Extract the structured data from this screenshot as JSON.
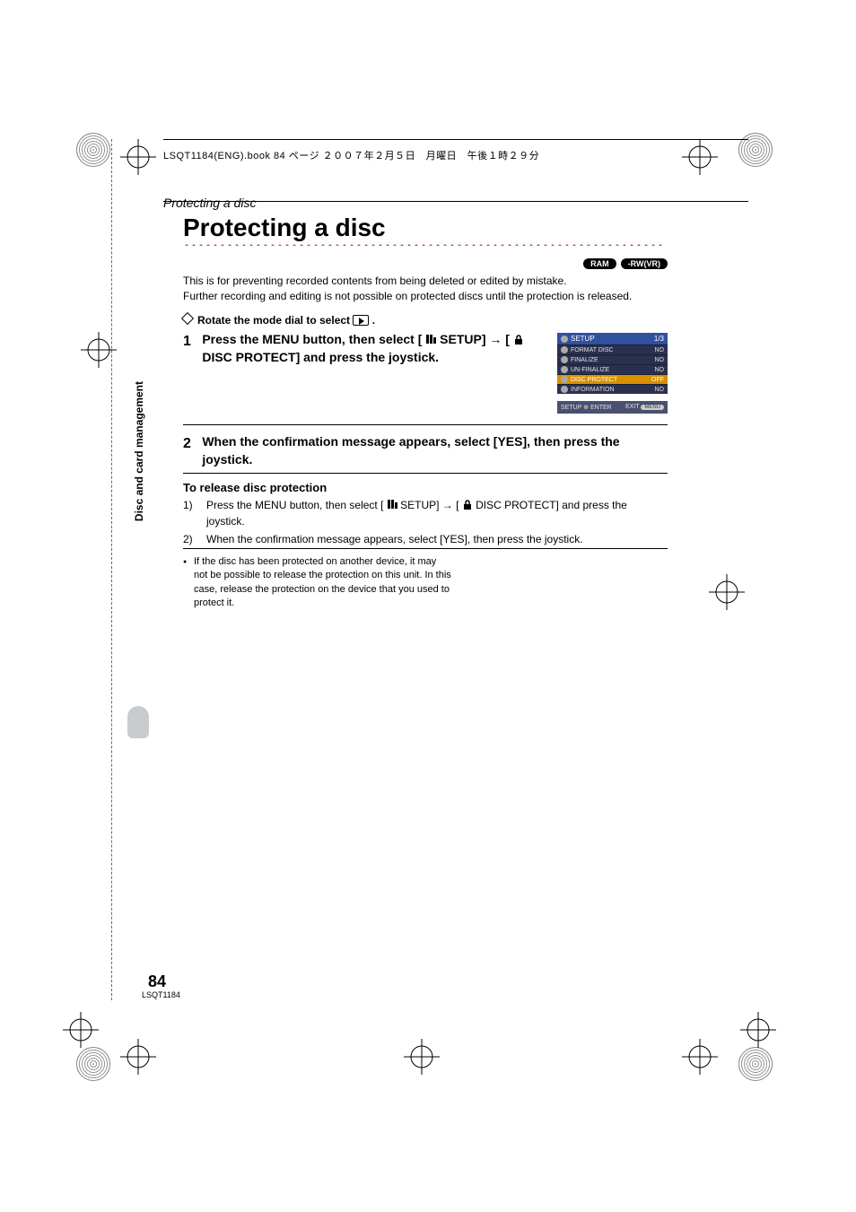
{
  "header": "LSQT1184(ENG).book  84 ページ  ２００７年２月５日　月曜日　午後１時２９分",
  "breadcrumb": "Protecting a disc",
  "title": "Protecting a disc",
  "badges": [
    "RAM",
    "-RW(VR)"
  ],
  "intro1": "This is for preventing recorded contents from being deleted or edited by mistake.",
  "intro2": "Further recording and editing is not possible on protected discs until the protection is released.",
  "rotate": "Rotate the mode dial to select ",
  "step1": {
    "num": "1",
    "t1": "Press the MENU button, then select [ ",
    "t2": " SETUP] ",
    "t3": "[ ",
    "t4": " DISC PROTECT] and press the joystick."
  },
  "step2": {
    "num": "2",
    "text": "When the confirmation message appears, select [YES], then press the joystick."
  },
  "release": {
    "heading": "To release disc protection",
    "item1a": "Press the MENU button, then select [ ",
    "item1b": " SETUP] ",
    "item1c": " [ ",
    "item1d": " DISC PROTECT] and press the joystick.",
    "item2": "When the confirmation message appears, select [YES], then press the joystick."
  },
  "note": "If the disc has been protected on another device, it may not be possible to release the protection on this unit. In this case, release the protection on the device that you used to protect it.",
  "sidebar": "Disc and card management",
  "pagenum": "84",
  "pagecode": "LSQT1184",
  "menu": {
    "title": "SETUP",
    "page": "1/3",
    "items": [
      {
        "label": "FORMAT DISC",
        "value": "NO"
      },
      {
        "label": "FINALIZE",
        "value": "NO"
      },
      {
        "label": "UN-FINALIZE",
        "value": "NO"
      },
      {
        "label": "DISC PROTECT",
        "value": "OFF",
        "selected": true
      },
      {
        "label": "INFORMATION",
        "value": "NO"
      }
    ],
    "footer_left": "SETUP",
    "footer_enter": "ENTER",
    "footer_exit": "EXIT",
    "footer_btn": "MENU"
  }
}
